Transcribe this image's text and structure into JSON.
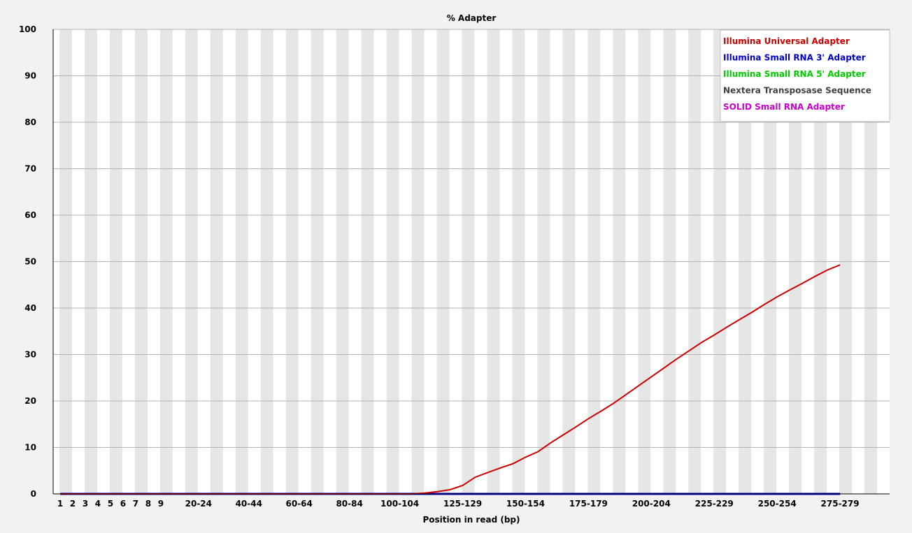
{
  "chart_data": {
    "type": "line",
    "title": "% Adapter",
    "xlabel": "Position in read (bp)",
    "ylabel": "",
    "ylim": [
      0,
      100
    ],
    "yticks": [
      0,
      10,
      20,
      30,
      40,
      50,
      60,
      70,
      80,
      90,
      100
    ],
    "categories": [
      "1",
      "2",
      "3",
      "4",
      "5",
      "6",
      "7",
      "8",
      "9",
      "10-14",
      "15-19",
      "20-24",
      "25-29",
      "30-34",
      "35-39",
      "40-44",
      "45-49",
      "50-54",
      "55-59",
      "60-64",
      "65-69",
      "70-74",
      "75-79",
      "80-84",
      "85-89",
      "90-94",
      "95-99",
      "100-104",
      "105-109",
      "110-114",
      "115-119",
      "120-124",
      "125-129",
      "130-134",
      "135-139",
      "140-144",
      "145-149",
      "150-154",
      "155-159",
      "160-164",
      "165-169",
      "170-174",
      "175-179",
      "180-184",
      "185-189",
      "190-194",
      "195-199",
      "200-204",
      "205-209",
      "210-214",
      "215-219",
      "220-224",
      "225-229",
      "230-234",
      "235-239",
      "240-244",
      "245-249",
      "250-254",
      "255-259",
      "260-264",
      "265-269",
      "270-274",
      "275-279",
      "280-284",
      "285-289"
    ],
    "xtick_labels_shown": [
      "1",
      "2",
      "3",
      "4",
      "5",
      "6",
      "7",
      "8",
      "9",
      "20-24",
      "40-44",
      "60-64",
      "80-84",
      "100-104",
      "125-129",
      "150-154",
      "175-179",
      "200-204",
      "225-229",
      "250-254",
      "275-279"
    ],
    "grid": true,
    "legend_position": "top-right",
    "series": [
      {
        "name": "Illumina Universal Adapter",
        "color": "#cc0000",
        "values": [
          0,
          0,
          0,
          0,
          0,
          0,
          0,
          0,
          0,
          0,
          0,
          0,
          0,
          0,
          0,
          0,
          0,
          0,
          0,
          0,
          0,
          0,
          0,
          0,
          0,
          0,
          0,
          0,
          0,
          0.2,
          0.5,
          0.9,
          1.8,
          3.6,
          4.6,
          5.6,
          6.5,
          7.9,
          9.1,
          11.0,
          12.7,
          14.4,
          16.2,
          17.8,
          19.5,
          21.4,
          23.3,
          25.2,
          27.1,
          29.0,
          30.8,
          32.6,
          34.2,
          35.9,
          37.5,
          39.1,
          40.8,
          42.4,
          43.9,
          45.3,
          46.8,
          48.2,
          49.3,
          null,
          null
        ]
      },
      {
        "name": "Illumina Small RNA 3' Adapter",
        "color": "#0000cc",
        "values": [
          0,
          0,
          0,
          0,
          0,
          0,
          0,
          0,
          0,
          0,
          0,
          0,
          0,
          0,
          0,
          0,
          0,
          0,
          0,
          0,
          0,
          0,
          0,
          0,
          0,
          0,
          0,
          0,
          0,
          0,
          0,
          0,
          0,
          0,
          0,
          0,
          0,
          0,
          0,
          0,
          0,
          0,
          0,
          0,
          0,
          0,
          0,
          0,
          0,
          0,
          0,
          0,
          0,
          0,
          0,
          0,
          0,
          0,
          0,
          0,
          0,
          0,
          0,
          null,
          null
        ]
      },
      {
        "name": "Illumina Small RNA 5' Adapter",
        "color": "#00cc00",
        "values": [
          0,
          0,
          0,
          0,
          0,
          0,
          0,
          0,
          0,
          0,
          0,
          0,
          0,
          0,
          0,
          0,
          0,
          0,
          0,
          0,
          0,
          0,
          0,
          0,
          0,
          0,
          0,
          0,
          0,
          0,
          0,
          0,
          0,
          0,
          0,
          0,
          0,
          0,
          0,
          0,
          0,
          0,
          0,
          0,
          0,
          0,
          0,
          0,
          0,
          0,
          0,
          0,
          0,
          0,
          0,
          0,
          0,
          0,
          0,
          0,
          0,
          0,
          0,
          null,
          null
        ]
      },
      {
        "name": "Nextera Transposase Sequence",
        "color": "#404040",
        "values": [
          0,
          0,
          0,
          0,
          0,
          0,
          0,
          0,
          0,
          0,
          0,
          0,
          0,
          0,
          0,
          0,
          0,
          0,
          0,
          0,
          0,
          0,
          0,
          0,
          0,
          0,
          0,
          0,
          0,
          0,
          0,
          0,
          0,
          0,
          0,
          0,
          0,
          0,
          0,
          0,
          0,
          0,
          0,
          0,
          0,
          0,
          0,
          0,
          0,
          0,
          0,
          0,
          0,
          0,
          0,
          0,
          0,
          0,
          0,
          0,
          0,
          0,
          0,
          null,
          null
        ]
      },
      {
        "name": "SOLID Small RNA Adapter",
        "color": "#cc00cc",
        "values": [
          0,
          0,
          0,
          0,
          0,
          0,
          0,
          0,
          0,
          0,
          0,
          0,
          0,
          0,
          0,
          0,
          0,
          0,
          0,
          0,
          0,
          0,
          0,
          0,
          0,
          0,
          0,
          0,
          0,
          0,
          0,
          0,
          0,
          0,
          0,
          0,
          0,
          0,
          0,
          0,
          0,
          0,
          0,
          0,
          0,
          0,
          0,
          0,
          0,
          0,
          0,
          0,
          0,
          0,
          0,
          0,
          0,
          0,
          0,
          0,
          0,
          0,
          0,
          null,
          null
        ]
      }
    ]
  }
}
